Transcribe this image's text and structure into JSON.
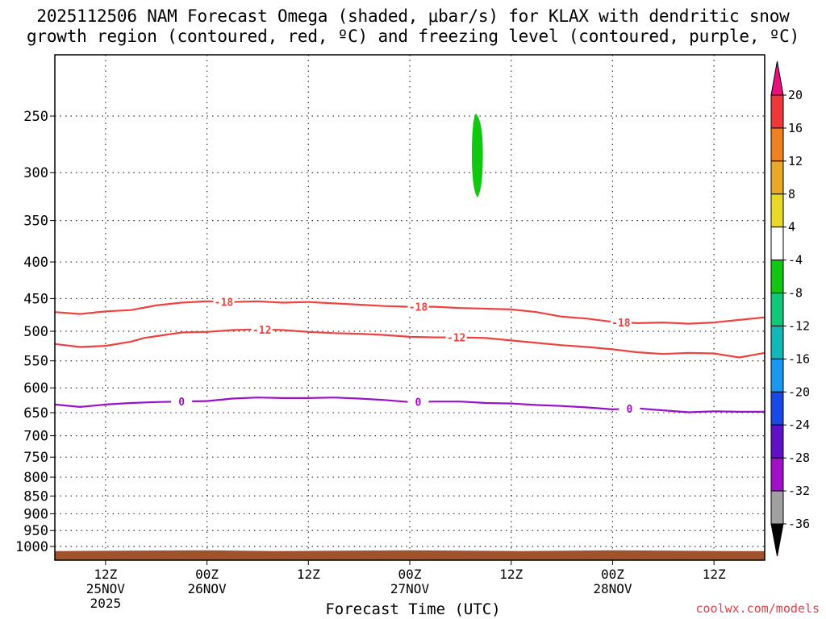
{
  "chart_data": {
    "type": "time-height",
    "title": "2025112506 NAM Forecast Omega (shaded, μbar/s) for KLAX with dendritic snow",
    "subtitle": "growth region (contoured, red, ºC) and freezing level (contoured, purple, ºC)",
    "xlabel": "Forecast Time (UTC)",
    "credit": "coolwx.com/models",
    "x_unit": "hours since 2025-11-25 06Z",
    "xlim": [
      0,
      84
    ],
    "x_ticks": [
      {
        "hour": 6,
        "label": "12Z",
        "sub1": "25NOV",
        "sub2": "2025"
      },
      {
        "hour": 18,
        "label": "00Z",
        "sub1": "26NOV",
        "sub2": ""
      },
      {
        "hour": 30,
        "label": "12Z",
        "sub1": "",
        "sub2": ""
      },
      {
        "hour": 42,
        "label": "00Z",
        "sub1": "27NOV",
        "sub2": ""
      },
      {
        "hour": 54,
        "label": "12Z",
        "sub1": "",
        "sub2": ""
      },
      {
        "hour": 66,
        "label": "00Z",
        "sub1": "28NOV",
        "sub2": ""
      },
      {
        "hour": 78,
        "label": "12Z",
        "sub1": "",
        "sub2": ""
      }
    ],
    "y_levels": [
      250,
      300,
      350,
      400,
      450,
      500,
      550,
      600,
      650,
      700,
      750,
      800,
      850,
      900,
      950,
      1000
    ],
    "ylim": [
      1025,
      200
    ],
    "y_scale": "log-pressure",
    "contours": [
      {
        "name": "-18",
        "color": "#f04040",
        "label_hours": [
          20,
          43,
          67
        ],
        "points": [
          [
            0,
            470
          ],
          [
            3,
            473
          ],
          [
            6,
            469
          ],
          [
            9,
            467
          ],
          [
            12,
            460
          ],
          [
            15,
            456
          ],
          [
            18,
            454
          ],
          [
            21,
            455
          ],
          [
            24,
            454
          ],
          [
            27,
            456
          ],
          [
            30,
            455
          ],
          [
            33,
            457
          ],
          [
            36,
            459
          ],
          [
            39,
            461
          ],
          [
            42,
            462
          ],
          [
            45,
            462
          ],
          [
            48,
            464
          ],
          [
            51,
            465
          ],
          [
            54,
            466
          ],
          [
            57,
            470
          ],
          [
            60,
            477
          ],
          [
            63,
            480
          ],
          [
            66,
            485
          ],
          [
            69,
            487
          ],
          [
            72,
            486
          ],
          [
            75,
            488
          ],
          [
            78,
            486
          ],
          [
            81,
            482
          ],
          [
            84,
            478
          ]
        ]
      },
      {
        "name": "-12",
        "color": "#f04040",
        "label_hours": [
          24.5,
          47.5
        ],
        "points": [
          [
            0,
            521
          ],
          [
            3,
            526
          ],
          [
            6,
            524
          ],
          [
            9,
            517
          ],
          [
            10.5,
            511
          ],
          [
            12,
            508
          ],
          [
            15,
            502
          ],
          [
            18,
            501
          ],
          [
            21,
            498
          ],
          [
            24,
            497
          ],
          [
            27,
            498
          ],
          [
            30,
            501
          ],
          [
            33,
            503
          ],
          [
            36,
            504
          ],
          [
            39,
            506
          ],
          [
            42,
            509
          ],
          [
            45,
            510
          ],
          [
            48,
            510
          ],
          [
            51,
            511
          ],
          [
            54,
            515
          ],
          [
            57,
            519
          ],
          [
            60,
            523
          ],
          [
            63,
            526
          ],
          [
            66,
            530
          ],
          [
            69,
            535
          ],
          [
            72,
            538
          ],
          [
            75,
            536
          ],
          [
            78,
            537
          ],
          [
            81,
            544
          ],
          [
            84,
            536
          ]
        ]
      },
      {
        "name": "0",
        "color": "#9a10c8",
        "label_hours": [
          15,
          43,
          68
        ],
        "points": [
          [
            0,
            633
          ],
          [
            3,
            638
          ],
          [
            6,
            633
          ],
          [
            9,
            630
          ],
          [
            12,
            628
          ],
          [
            15,
            627
          ],
          [
            18,
            626
          ],
          [
            21,
            621
          ],
          [
            24,
            619
          ],
          [
            27,
            620
          ],
          [
            30,
            620
          ],
          [
            33,
            619
          ],
          [
            36,
            621
          ],
          [
            39,
            624
          ],
          [
            42,
            628
          ],
          [
            45,
            627
          ],
          [
            48,
            627
          ],
          [
            51,
            630
          ],
          [
            54,
            631
          ],
          [
            57,
            634
          ],
          [
            60,
            636
          ],
          [
            63,
            639
          ],
          [
            66,
            643
          ],
          [
            69,
            641
          ],
          [
            72,
            645
          ],
          [
            75,
            649
          ],
          [
            78,
            647
          ],
          [
            81,
            648
          ],
          [
            84,
            648
          ]
        ]
      }
    ],
    "shaded_regions": [
      {
        "value_bin": "-8 to -4",
        "color": "#10c810",
        "center_hour": 50,
        "half_width_hours": 0.65,
        "top_hpa": 248,
        "bottom_hpa": 325,
        "peak_hpa": 283
      }
    ],
    "terrain": {
      "color": "#a0522d",
      "top_hpa": 1015
    },
    "colorbar": {
      "labels": [
        20,
        16,
        12,
        8,
        4,
        -4,
        -8,
        -12,
        -16,
        -20,
        -24,
        -28,
        -32,
        -36
      ],
      "colors": [
        "#e8107a",
        "#f03838",
        "#f08020",
        "#e8a828",
        "#e8d828",
        "#ffffff",
        "#10c810",
        "#10c878",
        "#10b8b8",
        "#1898f0",
        "#1848e8",
        "#6010c8",
        "#a010c8",
        "#a0a0a0",
        "#000000"
      ],
      "grid": "dotted"
    }
  }
}
